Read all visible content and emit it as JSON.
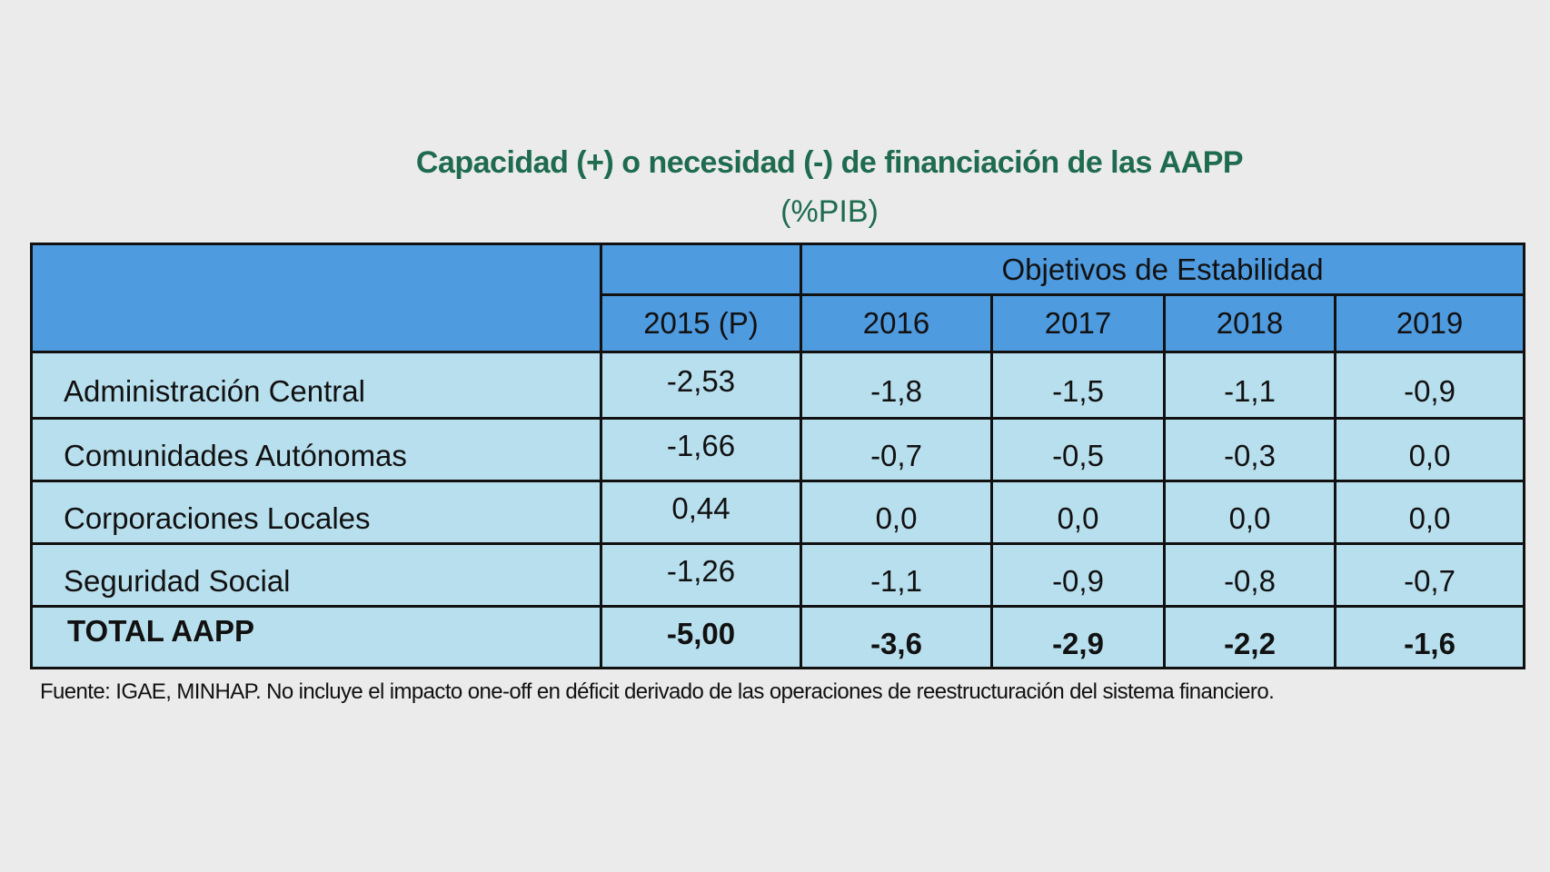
{
  "title": "Capacidad (+) o necesidad (-) de financiación de las AAPP",
  "subtitle": "(%PIB)",
  "table": {
    "group_header": "Objetivos de Estabilidad",
    "columns": [
      "2015 (P)",
      "2016",
      "2017",
      "2018",
      "2019"
    ],
    "rows": [
      {
        "label": "Administración Central",
        "values": [
          "-2,53",
          "-1,8",
          "-1,5",
          "-1,1",
          "-0,9"
        ]
      },
      {
        "label": "Comunidades Autónomas",
        "values": [
          "-1,66",
          "-0,7",
          "-0,5",
          "-0,3",
          "0,0"
        ]
      },
      {
        "label": "Corporaciones Locales",
        "values": [
          "0,44",
          "0,0",
          "0,0",
          "0,0",
          "0,0"
        ]
      },
      {
        "label": "Seguridad Social",
        "values": [
          "-1,26",
          "-1,1",
          "-0,9",
          "-0,8",
          "-0,7"
        ]
      },
      {
        "label": "TOTAL AAPP",
        "values": [
          "-5,00",
          "-3,6",
          "-2,9",
          "-2,2",
          "-1,6"
        ]
      }
    ]
  },
  "footnote": "Fuente: IGAE, MINHAP. No incluye el impacto one-off en déficit derivado de las operaciones de reestructuración del sistema financiero.",
  "colors": {
    "header": "#4f9be0",
    "body": "#b8dfee",
    "title": "#1e6b4f"
  }
}
